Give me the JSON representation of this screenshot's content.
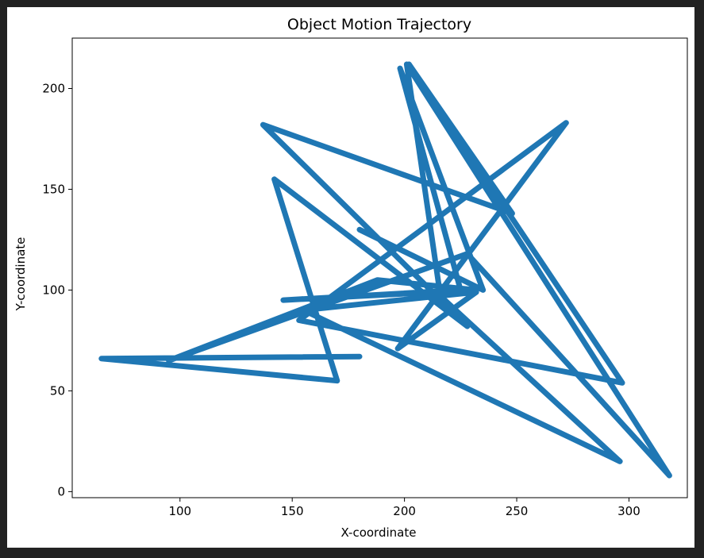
{
  "chart_data": {
    "type": "line",
    "title": "Object Motion Trajectory",
    "xlabel": "X-coordinate",
    "ylabel": "Y-coordinate",
    "xlim": [
      52,
      326
    ],
    "ylim": [
      -3,
      225
    ],
    "xticks": [
      100,
      150,
      200,
      250,
      300
    ],
    "yticks": [
      0,
      50,
      100,
      150,
      200
    ],
    "grid": false,
    "line_color": "#1f77b4",
    "x": [
      180,
      65,
      170,
      142,
      228,
      137,
      248,
      202,
      297,
      153,
      272,
      197,
      232,
      155,
      296,
      216,
      201,
      318,
      228,
      95,
      188,
      232,
      146,
      225,
      198,
      235,
      180
    ],
    "y": [
      67,
      66,
      55,
      155,
      82,
      182,
      138,
      212,
      54,
      85,
      183,
      71,
      99,
      90,
      15,
      97,
      212,
      8,
      118,
      65,
      105,
      100,
      95,
      100,
      210,
      100,
      130
    ]
  }
}
